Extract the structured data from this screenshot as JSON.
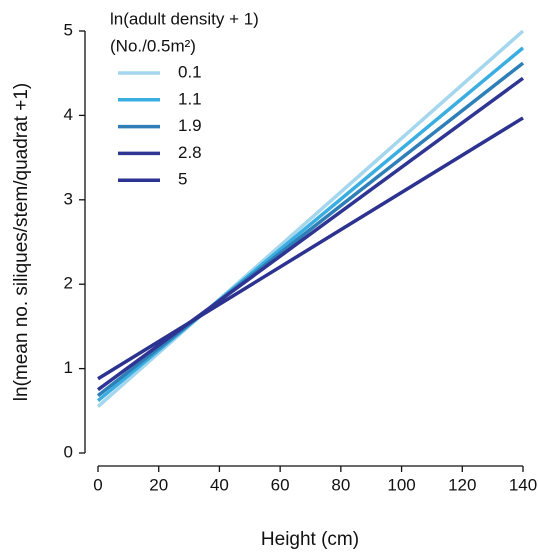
{
  "chart_data": {
    "type": "line",
    "x_label": "Height (cm)",
    "y_label": "ln(mean no. siliques/stem/quadrat +1)",
    "legend_title": [
      "ln(adult density + 1)",
      "(No./0.5m²)"
    ],
    "x": [
      0,
      140
    ],
    "series": [
      {
        "name": "0.1",
        "color": "#a4d7ee",
        "values": [
          0.55,
          5.0
        ]
      },
      {
        "name": "1.1",
        "color": "#3aaee0",
        "values": [
          0.62,
          4.8
        ]
      },
      {
        "name": "1.9",
        "color": "#2e7fb8",
        "values": [
          0.68,
          4.62
        ]
      },
      {
        "name": "2.8",
        "color": "#2f3593",
        "values": [
          0.75,
          4.44
        ]
      },
      {
        "name": "5",
        "color": "#2c3290",
        "values": [
          0.88,
          3.97
        ]
      }
    ],
    "xlim": [
      0,
      140
    ],
    "xticks": [
      0,
      20,
      40,
      60,
      80,
      100,
      120,
      140
    ],
    "ylim": [
      0,
      5
    ],
    "yticks": [
      0,
      1,
      2,
      3,
      4,
      5
    ],
    "legend": "top-left",
    "grid": false
  }
}
